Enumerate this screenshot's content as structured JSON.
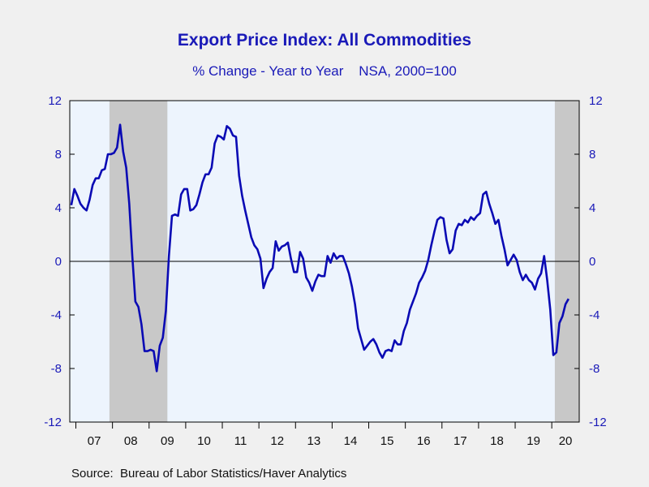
{
  "chart_data": {
    "type": "line",
    "title": "Export Price Index: All Commodities",
    "subtitle": "% Change - Year to Year    NSA, 2000=100",
    "source": "Source:  Bureau of Labor Statistics/Haver Analytics",
    "ylim": [
      -12,
      12
    ],
    "yticks": [
      "12",
      "8",
      "4",
      "0",
      "-4",
      "-8",
      "-12"
    ],
    "xtick_labels": [
      "07",
      "08",
      "09",
      "10",
      "11",
      "12",
      "13",
      "14",
      "15",
      "16",
      "17",
      "18",
      "19",
      "20"
    ],
    "x_start": "2006-11",
    "x_end": "2020-09",
    "recessions": [
      [
        "2007-12",
        "2009-06"
      ],
      [
        "2020-02",
        "2020-09"
      ]
    ],
    "grid": false,
    "zero_line": true,
    "colors": {
      "line": "#0a0ab4",
      "recession": "#c8c8c8",
      "plot_bg": "#edf4fd",
      "text": "#1a1ab8"
    },
    "series": [
      {
        "values": [
          4.2,
          5.4,
          4.9,
          4.3,
          4.0,
          3.8,
          4.6,
          5.7,
          6.2,
          6.2,
          6.8,
          6.9,
          8.0,
          8.0,
          8.1,
          8.5,
          10.2,
          8.2,
          7.0,
          4.3,
          0.4,
          -3.0,
          -3.4,
          -4.7,
          -6.7,
          -6.7,
          -6.6,
          -6.7,
          -8.2,
          -6.3,
          -5.7,
          -3.7,
          0.4,
          3.4,
          3.5,
          3.4,
          5.0,
          5.4,
          5.4,
          3.8,
          3.9,
          4.2,
          5.0,
          5.9,
          6.5,
          6.5,
          7.0,
          8.8,
          9.4,
          9.3,
          9.1,
          10.1,
          9.9,
          9.4,
          9.3,
          6.4,
          4.9,
          3.8,
          2.8,
          1.8,
          1.2,
          0.9,
          0.2,
          -2.0,
          -1.3,
          -0.8,
          -0.5,
          1.5,
          0.8,
          1.1,
          1.2,
          1.4,
          0.2,
          -0.8,
          -0.8,
          0.7,
          0.2,
          -1.2,
          -1.6,
          -2.2,
          -1.5,
          -1.0,
          -1.1,
          -1.1,
          0.4,
          -0.1,
          0.6,
          0.2,
          0.4,
          0.4,
          -0.2,
          -0.9,
          -1.9,
          -3.2,
          -5.0,
          -5.8,
          -6.6,
          -6.3,
          -6.0,
          -5.8,
          -6.2,
          -6.8,
          -7.2,
          -6.7,
          -6.6,
          -6.7,
          -5.9,
          -6.2,
          -6.2,
          -5.2,
          -4.6,
          -3.6,
          -3.0,
          -2.4,
          -1.6,
          -1.2,
          -0.7,
          0.1,
          1.2,
          2.2,
          3.1,
          3.3,
          3.2,
          1.6,
          0.6,
          0.9,
          2.3,
          2.8,
          2.7,
          3.1,
          2.9,
          3.3,
          3.1,
          3.4,
          3.6,
          5.0,
          5.2,
          4.3,
          3.6,
          2.8,
          3.1,
          1.9,
          0.9,
          -0.3,
          0.1,
          0.5,
          0.1,
          -0.8,
          -1.4,
          -1.0,
          -1.4,
          -1.6,
          -2.1,
          -1.3,
          -0.9,
          0.4,
          -1.4,
          -3.6,
          -7.0,
          -6.8,
          -4.6,
          -4.1,
          -3.2,
          -2.8
        ]
      }
    ]
  }
}
